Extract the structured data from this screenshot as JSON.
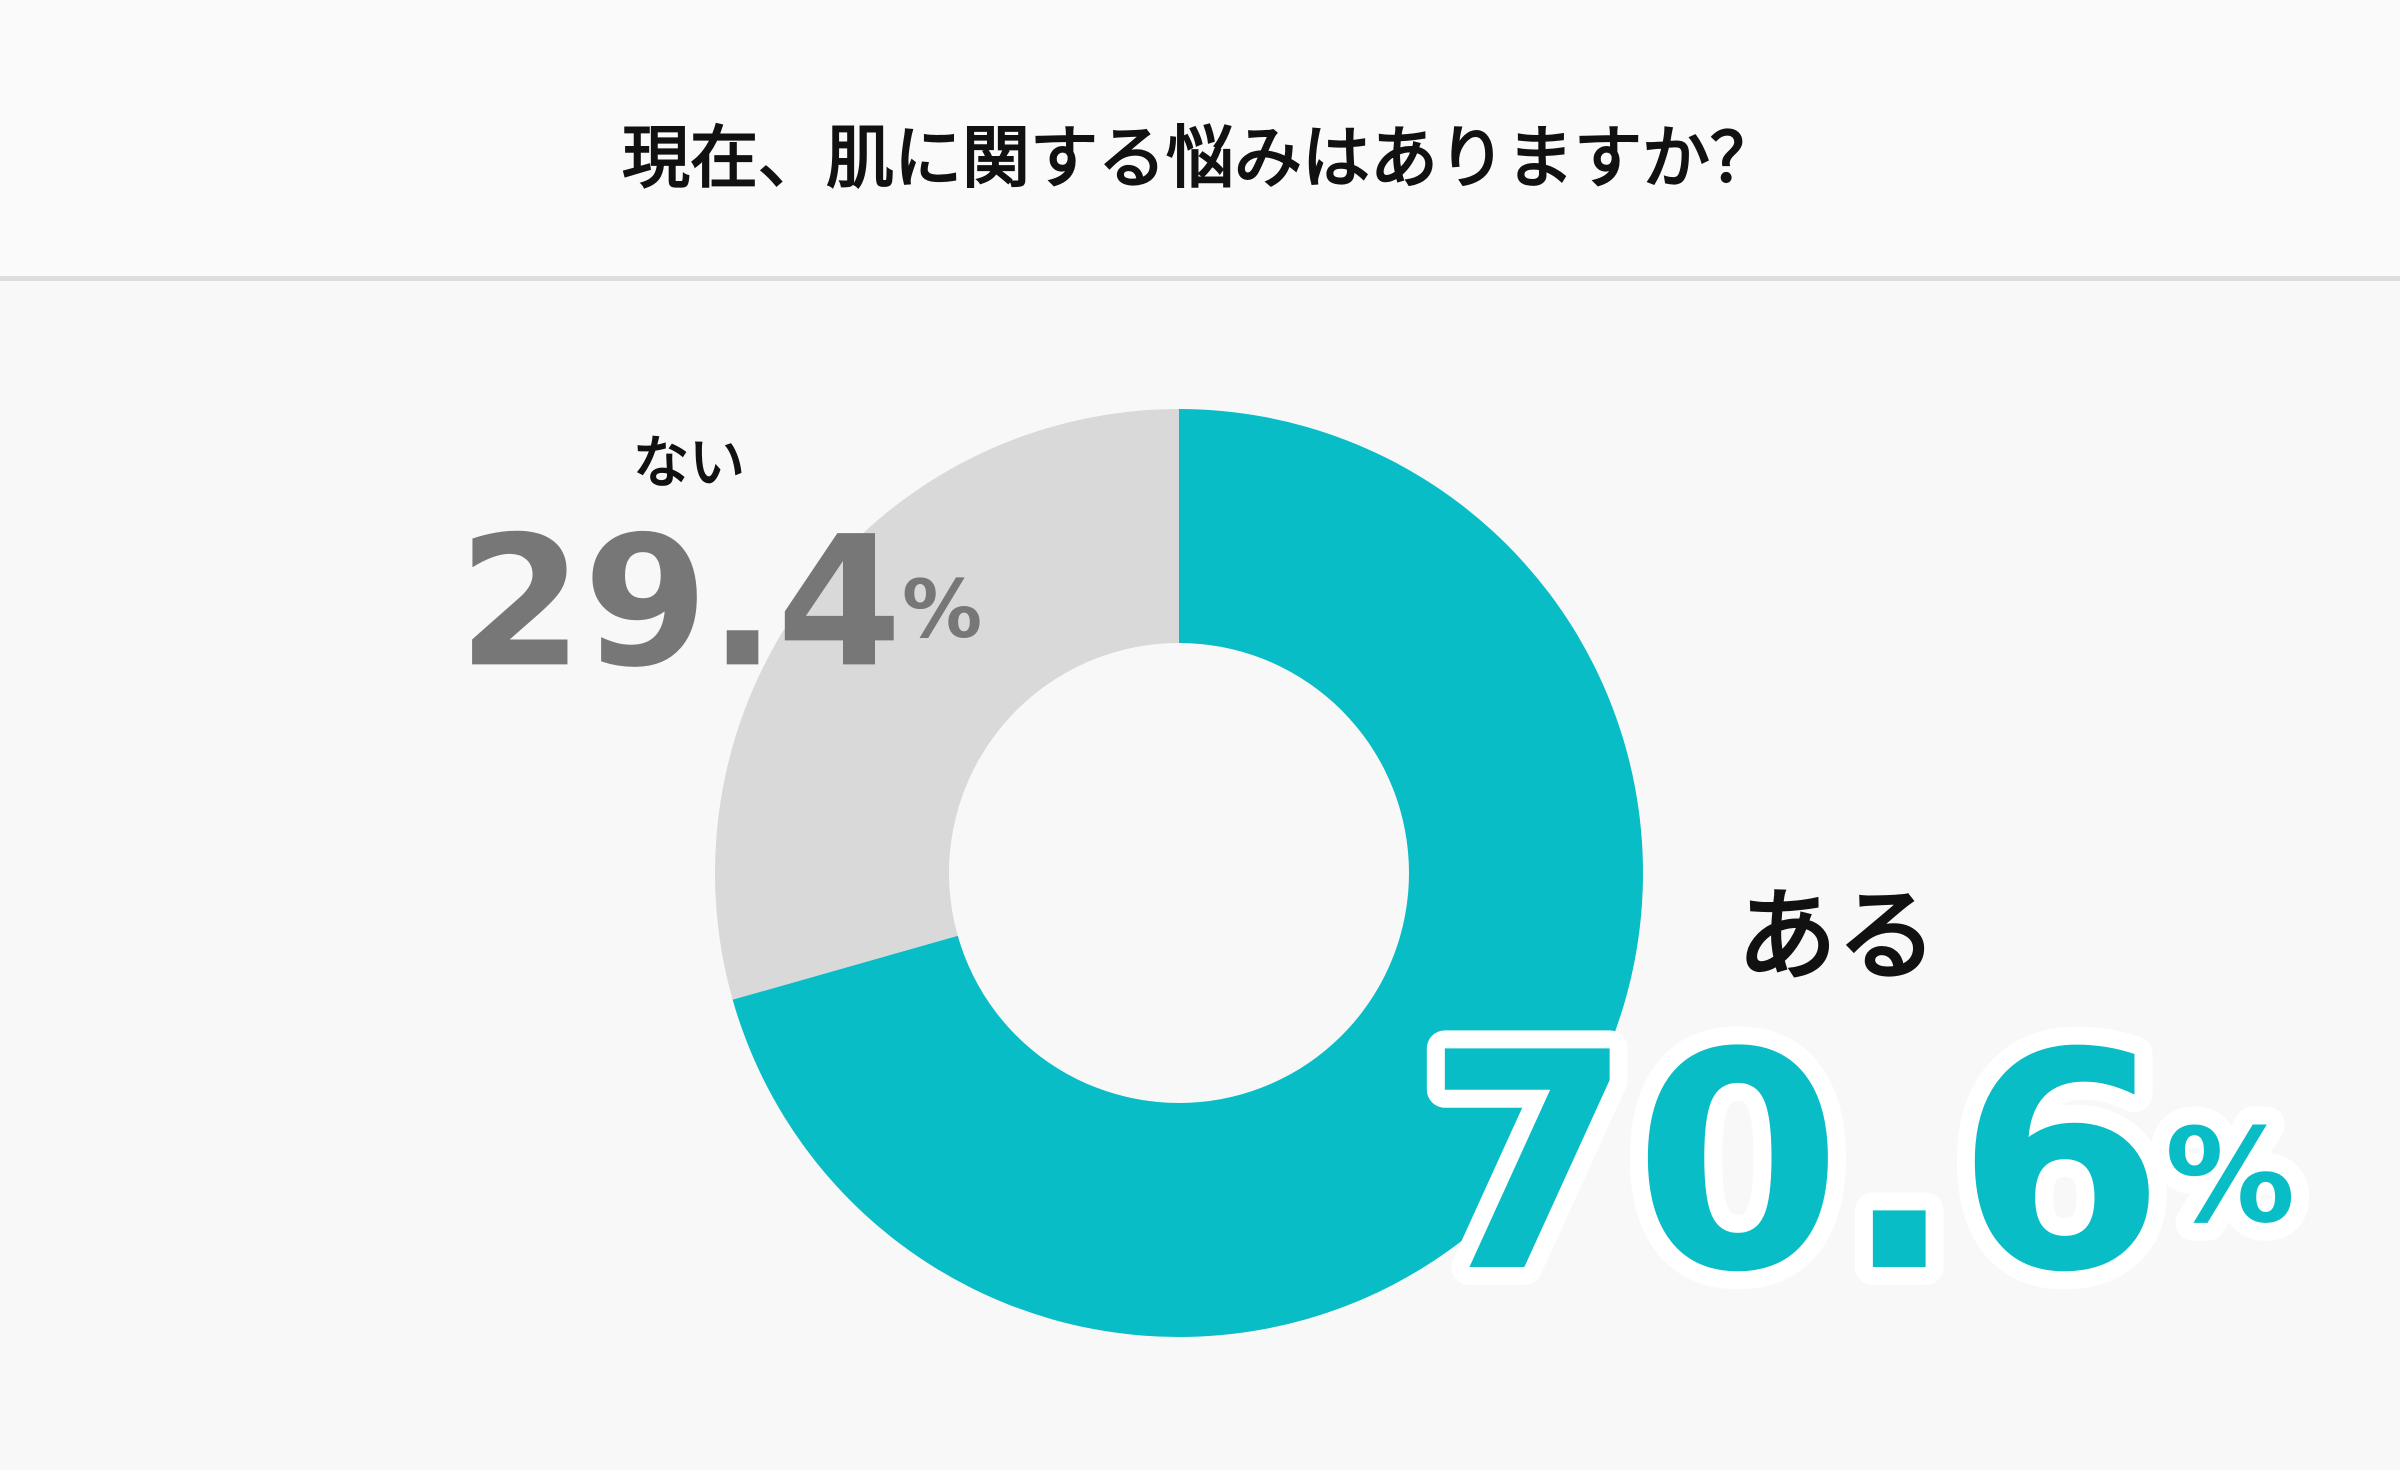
{
  "chart_data": {
    "type": "donut",
    "title": "現在、肌に関する悩みはありますか？",
    "categories": [
      "ある",
      "ない"
    ],
    "values": [
      70.6,
      29.4
    ],
    "value_labels": [
      "70.6%",
      "29.4%"
    ],
    "colors": [
      "#08bdc6",
      "#d9d9d9"
    ],
    "label_colors": [
      "#08bdc6",
      "#777777"
    ]
  }
}
